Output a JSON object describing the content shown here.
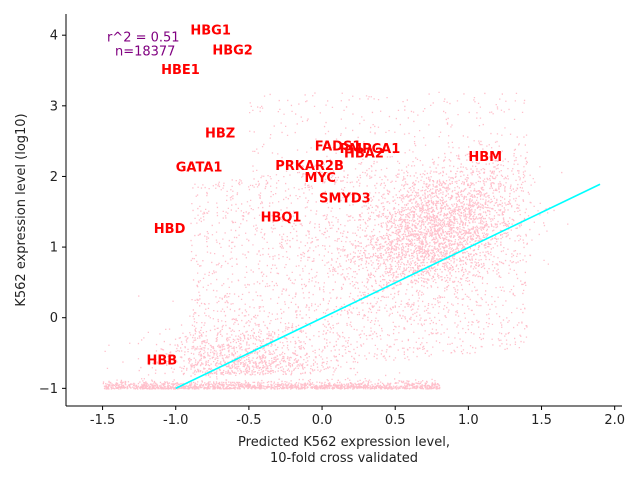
{
  "chart_data": {
    "type": "scatter",
    "xlabel_line1": "Predicted K562 expression level,",
    "xlabel_line2": "10-fold cross validated",
    "ylabel": "K562 expression level (log10)",
    "xlim": [
      -1.75,
      2.05
    ],
    "ylim": [
      -1.25,
      4.3
    ],
    "x_ticks": [
      "-1.5",
      "-1.0",
      "-0.5",
      "0.0",
      "0.5",
      "1.0",
      "1.5",
      "2.0"
    ],
    "x_tick_values": [
      -1.5,
      -1.0,
      -0.5,
      0.0,
      0.5,
      1.0,
      1.5,
      2.0
    ],
    "y_ticks": [
      "−1",
      "0",
      "1",
      "2",
      "3",
      "4"
    ],
    "y_tick_values": [
      -1,
      0,
      1,
      2,
      3,
      4
    ],
    "stats": {
      "r2": "r^2 = 0.51",
      "n": "n=18377",
      "x": -1.47,
      "y_r2": 3.98,
      "y_n": 3.78,
      "color": "#800080"
    },
    "point_color": "#ffc0cb",
    "fit_line": {
      "x": [
        -1.0,
        1.9
      ],
      "y": [
        -1.0,
        1.89
      ],
      "color": "#00ffff"
    },
    "label_color": "#ff0000",
    "labels": [
      {
        "text": "HBG1",
        "x": -0.9,
        "y": 4.08
      },
      {
        "text": "HBG2",
        "x": -0.75,
        "y": 3.8
      },
      {
        "text": "HBE1",
        "x": -1.1,
        "y": 3.52
      },
      {
        "text": "HBZ",
        "x": -0.8,
        "y": 2.62
      },
      {
        "text": "FADS1",
        "x": -0.05,
        "y": 2.44
      },
      {
        "text": "PMPCA1",
        "x": 0.12,
        "y": 2.4
      },
      {
        "text": "HBA2",
        "x": 0.15,
        "y": 2.34
      },
      {
        "text": "HBM",
        "x": 1.0,
        "y": 2.29
      },
      {
        "text": "GATA1",
        "x": -1.0,
        "y": 2.14
      },
      {
        "text": "PRKAR2B",
        "x": -0.32,
        "y": 2.16
      },
      {
        "text": "MYC",
        "x": -0.12,
        "y": 1.99
      },
      {
        "text": "SMYD3",
        "x": -0.02,
        "y": 1.7
      },
      {
        "text": "HBQ1",
        "x": -0.42,
        "y": 1.43
      },
      {
        "text": "HBD",
        "x": -1.15,
        "y": 1.27
      },
      {
        "text": "HBB",
        "x": -1.2,
        "y": -0.59
      }
    ]
  }
}
